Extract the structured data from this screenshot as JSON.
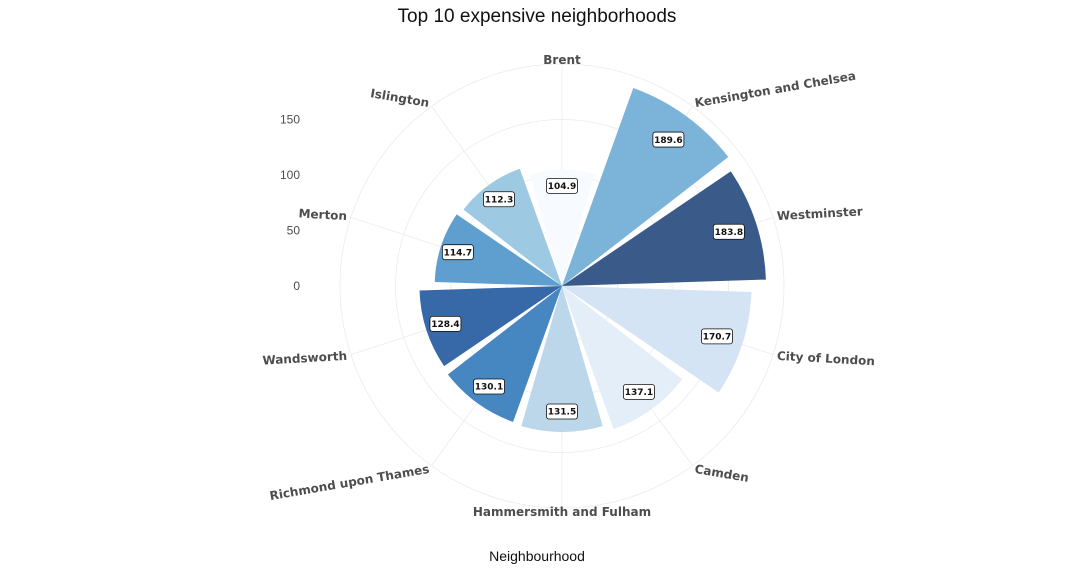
{
  "chart_data": {
    "type": "bar",
    "coord": "polar",
    "title": "Top 10 expensive neighborhoods",
    "xlabel": "Neighbourhood",
    "ylabel": "",
    "ylim": [
      0,
      200
    ],
    "yticks": [
      0,
      50,
      100,
      150
    ],
    "grid": true,
    "legend": "none",
    "categories": [
      "Brent",
      "Kensington and Chelsea",
      "Westminster",
      "City of London",
      "Camden",
      "Hammersmith and Fulham",
      "Richmond upon Thames",
      "Wandsworth",
      "Merton",
      "Islington"
    ],
    "values": [
      104.9,
      189.6,
      183.8,
      170.7,
      137.1,
      131.5,
      130.1,
      128.4,
      114.7,
      112.3
    ],
    "value_labels": [
      "104.9",
      "189.6",
      "183.8",
      "170.7",
      "137.1",
      "131.5",
      "130.1",
      "128.4",
      "114.7",
      "112.3"
    ],
    "colors": [
      "#f7fbff",
      "#7bb3d9",
      "#3a5a8a",
      "#d4e4f4",
      "#e3eef9",
      "#bcd7ea",
      "#4686c1",
      "#3769a9",
      "#5e9fd0",
      "#9dc9e2"
    ]
  }
}
